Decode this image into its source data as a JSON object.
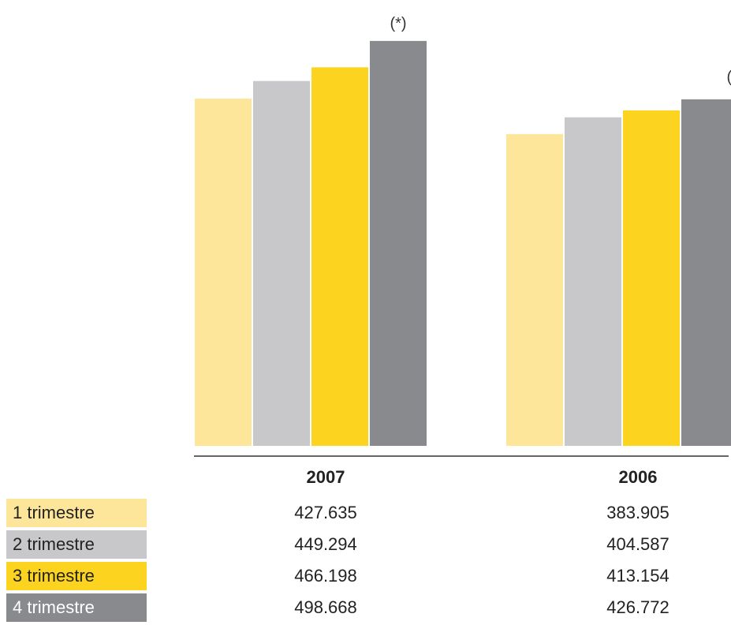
{
  "chart_data": {
    "type": "bar",
    "categories": [
      "2007",
      "2006"
    ],
    "series": [
      {
        "name": "1 trimestre",
        "values": [
          427.635,
          383.905
        ],
        "color": "#FDE59A"
      },
      {
        "name": "2 trimestre",
        "values": [
          449.294,
          404.587
        ],
        "color": "#C8C8CA"
      },
      {
        "name": "3 trimestre",
        "values": [
          466.198,
          413.154
        ],
        "color": "#FCD31E"
      },
      {
        "name": "4 trimestre",
        "values": [
          498.668,
          426.772
        ],
        "color": "#898A8D"
      }
    ],
    "annotations": [
      "(*)",
      "(*)"
    ],
    "table": {
      "rows": [
        {
          "label": "1 trimestre",
          "values": [
            "427.635",
            "383.905"
          ]
        },
        {
          "label": "2 trimestre",
          "values": [
            "449.294",
            "404.587"
          ]
        },
        {
          "label": "3 trimestre",
          "values": [
            "466.198",
            "413.154"
          ]
        },
        {
          "label": "4 trimestre",
          "values": [
            "498.668",
            "426.772"
          ]
        }
      ]
    },
    "grid": false
  }
}
